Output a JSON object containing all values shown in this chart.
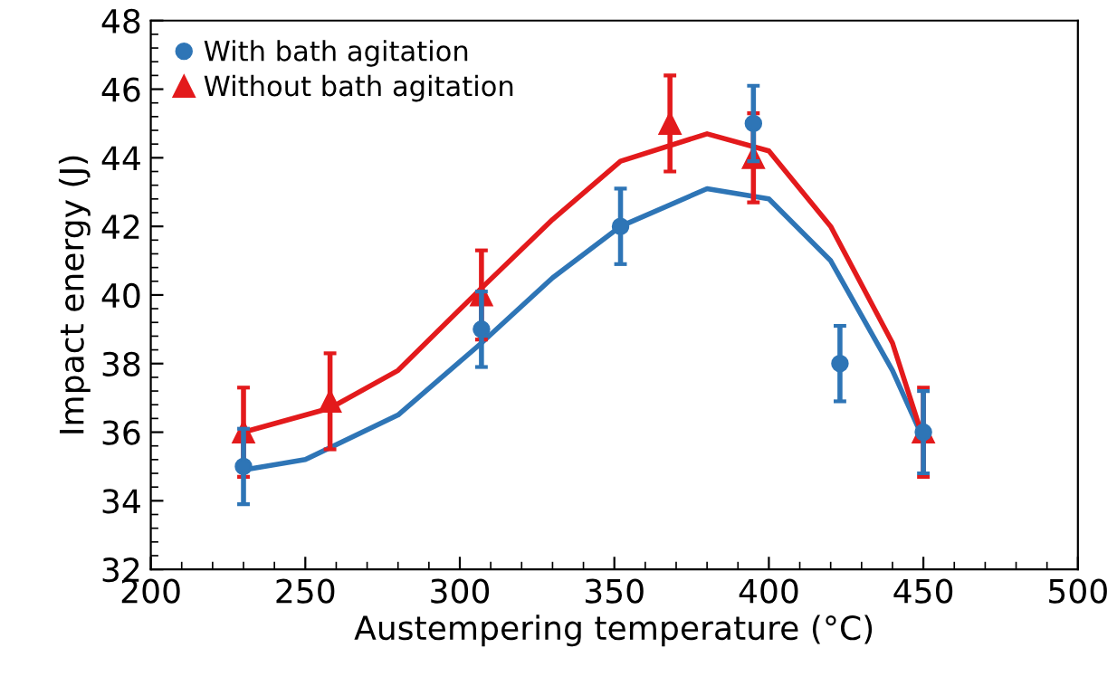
{
  "chart_data": {
    "type": "scatter",
    "xlabel": "Austempering temperature (°C)",
    "ylabel": "Impact energy (J)",
    "xlim": [
      200,
      500
    ],
    "xticks": [
      200,
      250,
      300,
      350,
      400,
      450,
      500
    ],
    "ylim": [
      32,
      48
    ],
    "yticks": [
      32,
      34,
      36,
      38,
      40,
      42,
      44,
      46,
      48
    ],
    "grid": false,
    "legend": "top left",
    "series": [
      {
        "name": "With bath agitation",
        "color": "#2e75b6",
        "marker": "circle",
        "x": [
          230,
          307,
          352,
          395,
          423,
          450
        ],
        "values": [
          35,
          39,
          42,
          45,
          38,
          36
        ],
        "errors": [
          1.1,
          1.1,
          1.1,
          1.1,
          1.1,
          1.2
        ]
      },
      {
        "name": "Without bath agitation",
        "color": "#e31a1c",
        "marker": "triangle",
        "x": [
          230,
          258,
          307,
          368,
          395,
          450
        ],
        "values": [
          36,
          36.9,
          40,
          45,
          44,
          36
        ],
        "errors": [
          1.3,
          1.4,
          1.3,
          1.4,
          1.3,
          1.3
        ]
      },
      {
        "type": "line",
        "color": "#2e75b6",
        "marker": "none",
        "x": [
          230,
          250,
          280,
          307,
          330,
          352,
          380,
          400,
          420,
          440,
          450
        ],
        "values": [
          34.9,
          35.2,
          36.5,
          38.6,
          40.5,
          42.0,
          43.1,
          42.8,
          41.0,
          37.8,
          35.8
        ]
      },
      {
        "type": "line",
        "color": "#e31a1c",
        "marker": "none",
        "x": [
          230,
          258,
          280,
          307,
          330,
          352,
          380,
          400,
          420,
          440,
          450
        ],
        "values": [
          36,
          36.7,
          37.8,
          40.2,
          42.2,
          43.9,
          44.7,
          44.2,
          42.0,
          38.6,
          35.8
        ]
      }
    ]
  }
}
